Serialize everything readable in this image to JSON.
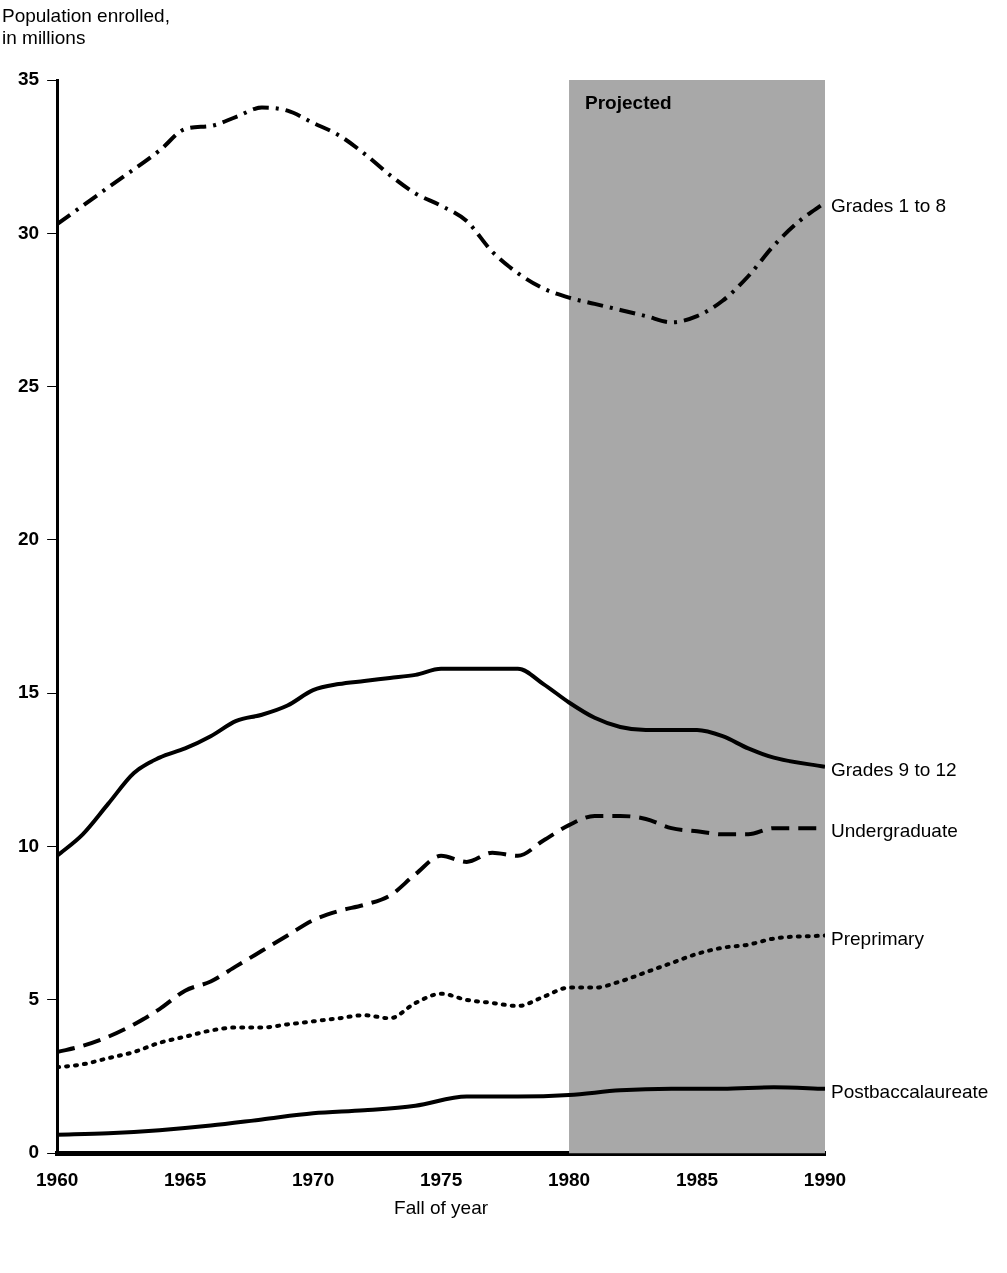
{
  "chart_data": {
    "type": "line",
    "ylabel": "Population enrolled, in millions",
    "xlabel": "Fall of year",
    "xlim": [
      1960,
      1990
    ],
    "xticks": [
      1960,
      1965,
      1970,
      1975,
      1980,
      1985,
      1990
    ],
    "ylim": [
      0,
      35
    ],
    "yticks": [
      0,
      5,
      10,
      15,
      20,
      25,
      30,
      35
    ],
    "grid": false,
    "legend": false,
    "bands": [
      {
        "axis": "x",
        "from": 1980,
        "to": 1990,
        "label": "Projected",
        "color": "#a8a8a8"
      }
    ],
    "series": [
      {
        "name": "Grades 1 to 8",
        "color": "#000000",
        "line_style": "dashdot",
        "x": [
          1960,
          1962,
          1964,
          1965,
          1966,
          1967,
          1968,
          1969,
          1970,
          1971,
          1972,
          1973,
          1974,
          1975,
          1976,
          1977,
          1978,
          1979,
          1980,
          1981,
          1982,
          1983,
          1984,
          1985,
          1986,
          1987,
          1988,
          1989,
          1990
        ],
        "values": [
          30.3,
          31.5,
          32.7,
          33.4,
          33.5,
          33.8,
          34.1,
          34.0,
          33.6,
          33.2,
          32.6,
          31.9,
          31.3,
          30.9,
          30.4,
          29.4,
          28.7,
          28.2,
          27.9,
          27.7,
          27.5,
          27.3,
          27.1,
          27.3,
          27.8,
          28.6,
          29.6,
          30.4,
          31.0
        ]
      },
      {
        "name": "Grades 9 to 12",
        "color": "#000000",
        "line_style": "solid",
        "x": [
          1960,
          1961,
          1962,
          1963,
          1964,
          1965,
          1966,
          1967,
          1968,
          1969,
          1970,
          1971,
          1972,
          1973,
          1974,
          1975,
          1976,
          1977,
          1978,
          1979,
          1980,
          1981,
          1982,
          1983,
          1984,
          1985,
          1986,
          1987,
          1988,
          1990
        ],
        "values": [
          9.7,
          10.4,
          11.4,
          12.4,
          12.9,
          13.2,
          13.6,
          14.1,
          14.3,
          14.6,
          15.1,
          15.3,
          15.4,
          15.5,
          15.6,
          15.8,
          15.8,
          15.8,
          15.8,
          15.3,
          14.7,
          14.2,
          13.9,
          13.8,
          13.8,
          13.8,
          13.6,
          13.2,
          12.9,
          12.6
        ]
      },
      {
        "name": "Undergraduate",
        "color": "#000000",
        "line_style": "dashed",
        "x": [
          1960,
          1961,
          1962,
          1963,
          1964,
          1965,
          1966,
          1967,
          1968,
          1969,
          1970,
          1971,
          1972,
          1973,
          1974,
          1975,
          1976,
          1977,
          1978,
          1979,
          1980,
          1981,
          1982,
          1983,
          1984,
          1985,
          1986,
          1987,
          1988,
          1990
        ],
        "values": [
          3.3,
          3.5,
          3.8,
          4.2,
          4.7,
          5.3,
          5.6,
          6.1,
          6.6,
          7.1,
          7.6,
          7.9,
          8.1,
          8.4,
          9.1,
          9.7,
          9.5,
          9.8,
          9.7,
          10.2,
          10.7,
          11.0,
          11.0,
          10.9,
          10.6,
          10.5,
          10.4,
          10.4,
          10.6,
          10.6
        ]
      },
      {
        "name": "Preprimary",
        "color": "#000000",
        "line_style": "dotted",
        "x": [
          1960,
          1961,
          1962,
          1963,
          1964,
          1965,
          1966,
          1967,
          1968,
          1969,
          1970,
          1971,
          1972,
          1973,
          1974,
          1975,
          1976,
          1977,
          1978,
          1979,
          1980,
          1981,
          1982,
          1983,
          1984,
          1985,
          1986,
          1987,
          1988,
          1990
        ],
        "values": [
          2.8,
          2.9,
          3.1,
          3.3,
          3.6,
          3.8,
          4.0,
          4.1,
          4.1,
          4.2,
          4.3,
          4.4,
          4.5,
          4.4,
          4.9,
          5.2,
          5.0,
          4.9,
          4.8,
          5.1,
          5.4,
          5.4,
          5.6,
          5.9,
          6.2,
          6.5,
          6.7,
          6.8,
          7.0,
          7.1
        ]
      },
      {
        "name": "Postbaccalaureate",
        "color": "#000000",
        "line_style": "solid",
        "x": [
          1960,
          1962,
          1964,
          1966,
          1968,
          1970,
          1972,
          1974,
          1976,
          1978,
          1980,
          1982,
          1984,
          1986,
          1988,
          1990
        ],
        "values": [
          0.6,
          0.65,
          0.75,
          0.9,
          1.1,
          1.3,
          1.4,
          1.55,
          1.85,
          1.85,
          1.9,
          2.05,
          2.1,
          2.1,
          2.15,
          2.1
        ]
      }
    ]
  }
}
